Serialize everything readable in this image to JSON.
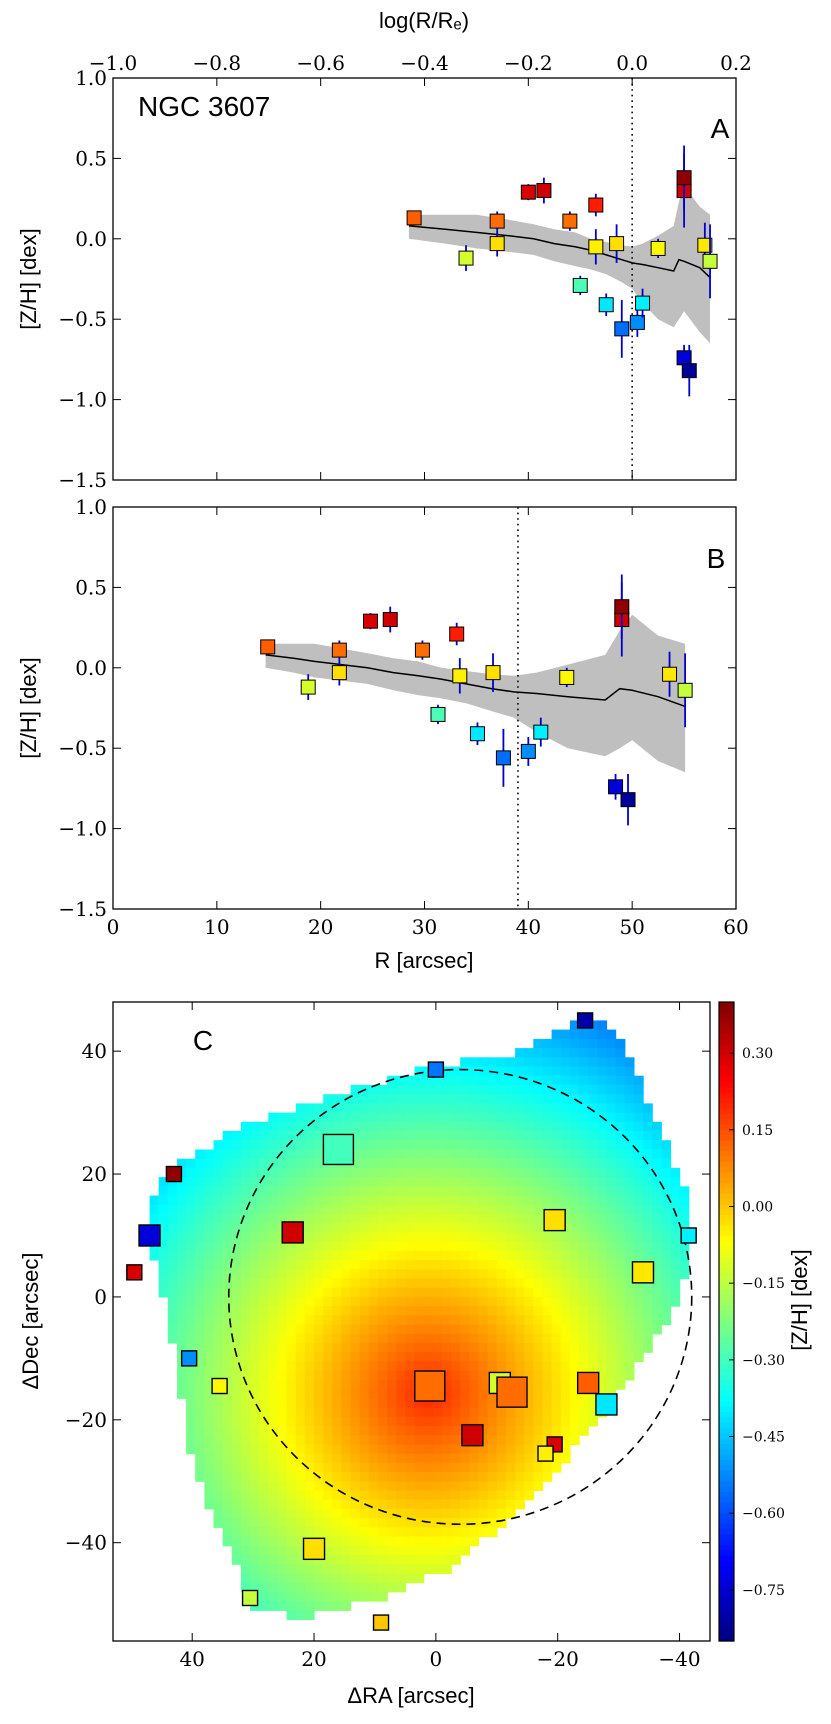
{
  "galaxy_label": "NGC 3607",
  "panel_labels": {
    "A": "A",
    "B": "B",
    "C": "C"
  },
  "colors": {
    "band": "#bfbfbf",
    "model_line": "#000000",
    "errorbar": "#0000cc",
    "ellipse": "#000000",
    "marker_edge": "#000000"
  },
  "chart_data": [
    {
      "id": "A",
      "type": "scatter",
      "xlabel_top": "log(R/Rₑ)",
      "ylabel": "[Z/H] [dex]",
      "xlim": [
        -1.0,
        0.2
      ],
      "ylim": [
        -1.5,
        1.0
      ],
      "x_ticks": [
        -1.0,
        -0.8,
        -0.6,
        -0.4,
        -0.2,
        0.0,
        0.2
      ],
      "x_tick_labels": [
        "−1.0",
        "−0.8",
        "−0.6",
        "−0.4",
        "−0.2",
        "0.0",
        "0.2"
      ],
      "y_ticks": [
        1.0,
        0.5,
        0.0,
        -0.5,
        -1.0,
        -1.5
      ],
      "y_tick_labels": [
        "1.0",
        "0.5",
        "0.0",
        "−0.5",
        "−1.0",
        "−1.5"
      ],
      "vline": 0.0,
      "points": [
        {
          "x": -0.42,
          "y": 0.13,
          "err": 0.03
        },
        {
          "x": -0.32,
          "y": -0.12,
          "err": 0.08
        },
        {
          "x": -0.26,
          "y": 0.11,
          "err": 0.06
        },
        {
          "x": -0.26,
          "y": -0.03,
          "err": 0.08
        },
        {
          "x": -0.2,
          "y": 0.29,
          "err": 0.05
        },
        {
          "x": -0.17,
          "y": 0.3,
          "err": 0.08
        },
        {
          "x": -0.12,
          "y": 0.11,
          "err": 0.06
        },
        {
          "x": -0.1,
          "y": -0.29,
          "err": 0.06
        },
        {
          "x": -0.07,
          "y": 0.21,
          "err": 0.07
        },
        {
          "x": -0.07,
          "y": -0.05,
          "err": 0.11
        },
        {
          "x": -0.05,
          "y": -0.41,
          "err": 0.07
        },
        {
          "x": -0.03,
          "y": -0.03,
          "err": 0.12
        },
        {
          "x": -0.02,
          "y": -0.56,
          "err": 0.18
        },
        {
          "x": 0.01,
          "y": -0.52,
          "err": 0.09
        },
        {
          "x": 0.02,
          "y": -0.4,
          "err": 0.09
        },
        {
          "x": 0.05,
          "y": -0.06,
          "err": 0.06
        },
        {
          "x": 0.1,
          "y": -0.74,
          "err": 0.08
        },
        {
          "x": 0.1,
          "y": 0.3,
          "err": 0.23
        },
        {
          "x": 0.1,
          "y": 0.38,
          "err": 0.2
        },
        {
          "x": 0.11,
          "y": -0.82,
          "err": 0.16
        },
        {
          "x": 0.14,
          "y": -0.04,
          "err": 0.14
        },
        {
          "x": 0.15,
          "y": -0.14,
          "err": 0.23
        }
      ],
      "model_x": [
        -0.43,
        -0.36,
        -0.3,
        -0.24,
        -0.19,
        -0.15,
        -0.11,
        -0.08,
        -0.05,
        -0.02,
        0.0,
        0.02,
        0.05,
        0.08,
        0.09,
        0.1,
        0.13,
        0.15
      ],
      "model_y": [
        0.08,
        0.06,
        0.04,
        0.02,
        0.0,
        -0.03,
        -0.05,
        -0.07,
        -0.1,
        -0.13,
        -0.15,
        -0.16,
        -0.18,
        -0.2,
        -0.13,
        -0.14,
        -0.18,
        -0.24
      ],
      "band_upper": [
        0.15,
        0.15,
        0.15,
        0.12,
        0.09,
        0.06,
        0.04,
        0.0,
        -0.02,
        -0.04,
        -0.05,
        -0.03,
        0.02,
        0.08,
        0.23,
        0.33,
        0.2,
        0.15
      ],
      "band_lower": [
        0.0,
        -0.03,
        -0.06,
        -0.08,
        -0.1,
        -0.14,
        -0.17,
        -0.19,
        -0.22,
        -0.27,
        -0.31,
        -0.4,
        -0.5,
        -0.55,
        -0.5,
        -0.45,
        -0.58,
        -0.65
      ]
    },
    {
      "id": "B",
      "type": "scatter",
      "xlabel": "R [arcsec]",
      "ylabel": "[Z/H] [dex]",
      "xlim": [
        0,
        60
      ],
      "ylim": [
        -1.5,
        1.0
      ],
      "x_ticks": [
        0,
        10,
        20,
        30,
        40,
        50,
        60
      ],
      "x_tick_labels": [
        "0",
        "10",
        "20",
        "30",
        "40",
        "50",
        "60"
      ],
      "y_ticks": [
        1.0,
        0.5,
        0.0,
        -0.5,
        -1.0,
        -1.5
      ],
      "y_tick_labels": [
        "1.0",
        "0.5",
        "0.0",
        "−0.5",
        "−1.0",
        "−1.5"
      ],
      "vline": 39,
      "points": [
        {
          "x": 14.9,
          "y": 0.13,
          "err": 0.03
        },
        {
          "x": 18.8,
          "y": -0.12,
          "err": 0.08
        },
        {
          "x": 21.8,
          "y": 0.11,
          "err": 0.06
        },
        {
          "x": 21.8,
          "y": -0.03,
          "err": 0.08
        },
        {
          "x": 24.8,
          "y": 0.29,
          "err": 0.05
        },
        {
          "x": 26.7,
          "y": 0.3,
          "err": 0.08
        },
        {
          "x": 29.8,
          "y": 0.11,
          "err": 0.06
        },
        {
          "x": 31.3,
          "y": -0.29,
          "err": 0.06
        },
        {
          "x": 33.1,
          "y": 0.21,
          "err": 0.07
        },
        {
          "x": 33.4,
          "y": -0.05,
          "err": 0.11
        },
        {
          "x": 35.1,
          "y": -0.41,
          "err": 0.07
        },
        {
          "x": 36.6,
          "y": -0.03,
          "err": 0.12
        },
        {
          "x": 37.6,
          "y": -0.56,
          "err": 0.18
        },
        {
          "x": 40.0,
          "y": -0.52,
          "err": 0.09
        },
        {
          "x": 41.2,
          "y": -0.4,
          "err": 0.09
        },
        {
          "x": 43.7,
          "y": -0.06,
          "err": 0.06
        },
        {
          "x": 48.4,
          "y": -0.74,
          "err": 0.08
        },
        {
          "x": 49.0,
          "y": 0.3,
          "err": 0.23
        },
        {
          "x": 49.0,
          "y": 0.38,
          "err": 0.2
        },
        {
          "x": 49.6,
          "y": -0.82,
          "err": 0.16
        },
        {
          "x": 53.6,
          "y": -0.04,
          "err": 0.14
        },
        {
          "x": 55.1,
          "y": -0.14,
          "err": 0.23
        }
      ],
      "model_x": [
        14.7,
        17.4,
        19.4,
        22.0,
        24.5,
        27.0,
        29.4,
        31.6,
        34.0,
        36.5,
        38.6,
        40.8,
        43.8,
        47.4,
        48.8,
        50.0,
        52.5,
        55.1
      ],
      "model_y": [
        0.08,
        0.06,
        0.04,
        0.02,
        0.0,
        -0.03,
        -0.05,
        -0.07,
        -0.1,
        -0.13,
        -0.15,
        -0.16,
        -0.18,
        -0.2,
        -0.13,
        -0.14,
        -0.18,
        -0.24
      ],
      "band_upper": [
        0.15,
        0.15,
        0.15,
        0.12,
        0.09,
        0.06,
        0.04,
        0.0,
        -0.02,
        -0.04,
        -0.05,
        -0.03,
        0.02,
        0.08,
        0.23,
        0.33,
        0.2,
        0.15
      ],
      "band_lower": [
        0.0,
        -0.03,
        -0.06,
        -0.08,
        -0.1,
        -0.14,
        -0.17,
        -0.19,
        -0.22,
        -0.27,
        -0.31,
        -0.4,
        -0.5,
        -0.55,
        -0.5,
        -0.45,
        -0.58,
        -0.65
      ]
    },
    {
      "id": "C",
      "type": "heatmap",
      "xlabel": "ΔRA [arcsec]",
      "ylabel": "ΔDec [arcsec]",
      "colorbar_label": "[Z/H] [dex]",
      "xlim": [
        53,
        -45
      ],
      "ylim": [
        -56,
        48
      ],
      "x_ticks": [
        40,
        20,
        0,
        -20,
        -40
      ],
      "x_tick_labels": [
        "40",
        "20",
        "0",
        "−20",
        "−40"
      ],
      "y_ticks": [
        40,
        20,
        0,
        -20,
        -40
      ],
      "y_tick_labels": [
        "40",
        "20",
        "0",
        "−20",
        "−40"
      ],
      "color_range": [
        -0.85,
        0.4
      ],
      "colorbar_ticks": [
        0.3,
        0.15,
        0.0,
        -0.15,
        -0.3,
        -0.45,
        -0.6,
        -0.75
      ],
      "colorbar_tick_labels": [
        "0.30",
        "0.15",
        "0.00",
        "−0.15",
        "−0.30",
        "−0.45",
        "−0.60",
        "−0.75"
      ],
      "map_center": [
        2,
        -15
      ],
      "map_value_center": 0.2,
      "map_value_slope": -0.011,
      "footprint": [
        [
          -25,
          46
        ],
        [
          -30,
          43
        ],
        [
          -34,
          33
        ],
        [
          -41,
          17
        ],
        [
          -41,
          4
        ],
        [
          -37,
          -5
        ],
        [
          -27,
          -19
        ],
        [
          -15,
          -33
        ],
        [
          -2,
          -44
        ],
        [
          10,
          -49
        ],
        [
          22,
          -52
        ],
        [
          31,
          -50
        ],
        [
          33,
          -44
        ],
        [
          40,
          -28
        ],
        [
          44,
          -5
        ],
        [
          48,
          13
        ],
        [
          46,
          19
        ],
        [
          41,
          23
        ],
        [
          30,
          29
        ],
        [
          18,
          33
        ],
        [
          0,
          38
        ],
        [
          -12,
          40
        ],
        [
          -20,
          44
        ]
      ],
      "ellipse": {
        "center": [
          -4,
          0
        ],
        "semi_major": 38,
        "semi_minor": 37
      },
      "squares": [
        {
          "x": -24.5,
          "y": 45,
          "value": -0.8,
          "size": "small"
        },
        {
          "x": 0,
          "y": 37,
          "value": -0.55,
          "size": "small"
        },
        {
          "x": 16,
          "y": 24,
          "value": -0.3,
          "size": "large"
        },
        {
          "x": 43,
          "y": 20,
          "value": 0.38,
          "size": "small"
        },
        {
          "x": 47,
          "y": 10,
          "value": -0.74,
          "size": "medium"
        },
        {
          "x": 49.5,
          "y": 4,
          "value": 0.29,
          "size": "small"
        },
        {
          "x": 23.5,
          "y": 10.5,
          "value": 0.3,
          "size": "medium"
        },
        {
          "x": -19.5,
          "y": 12.5,
          "value": -0.03,
          "size": "medium"
        },
        {
          "x": -34,
          "y": 4,
          "value": -0.04,
          "size": "medium"
        },
        {
          "x": -41.5,
          "y": 10,
          "value": -0.4,
          "size": "small"
        },
        {
          "x": 40.5,
          "y": -10,
          "value": -0.52,
          "size": "small"
        },
        {
          "x": 35.5,
          "y": -14.5,
          "value": -0.06,
          "size": "small"
        },
        {
          "x": 1,
          "y": -14.5,
          "value": 0.11,
          "size": "large"
        },
        {
          "x": -10.5,
          "y": -14,
          "value": -0.12,
          "size": "medium"
        },
        {
          "x": -12.5,
          "y": -15.5,
          "value": 0.11,
          "size": "large"
        },
        {
          "x": -25,
          "y": -14,
          "value": 0.13,
          "size": "medium"
        },
        {
          "x": -28,
          "y": -17.5,
          "value": -0.41,
          "size": "medium"
        },
        {
          "x": -6,
          "y": -22.5,
          "value": 0.3,
          "size": "medium"
        },
        {
          "x": -19.5,
          "y": -24,
          "value": 0.29,
          "size": "small"
        },
        {
          "x": -18,
          "y": -25.5,
          "value": -0.05,
          "size": "small"
        },
        {
          "x": 20,
          "y": -41,
          "value": -0.03,
          "size": "medium"
        },
        {
          "x": 30.5,
          "y": -49,
          "value": -0.14,
          "size": "small"
        },
        {
          "x": 9,
          "y": -53,
          "value": 0.0,
          "size": "small"
        }
      ]
    }
  ]
}
